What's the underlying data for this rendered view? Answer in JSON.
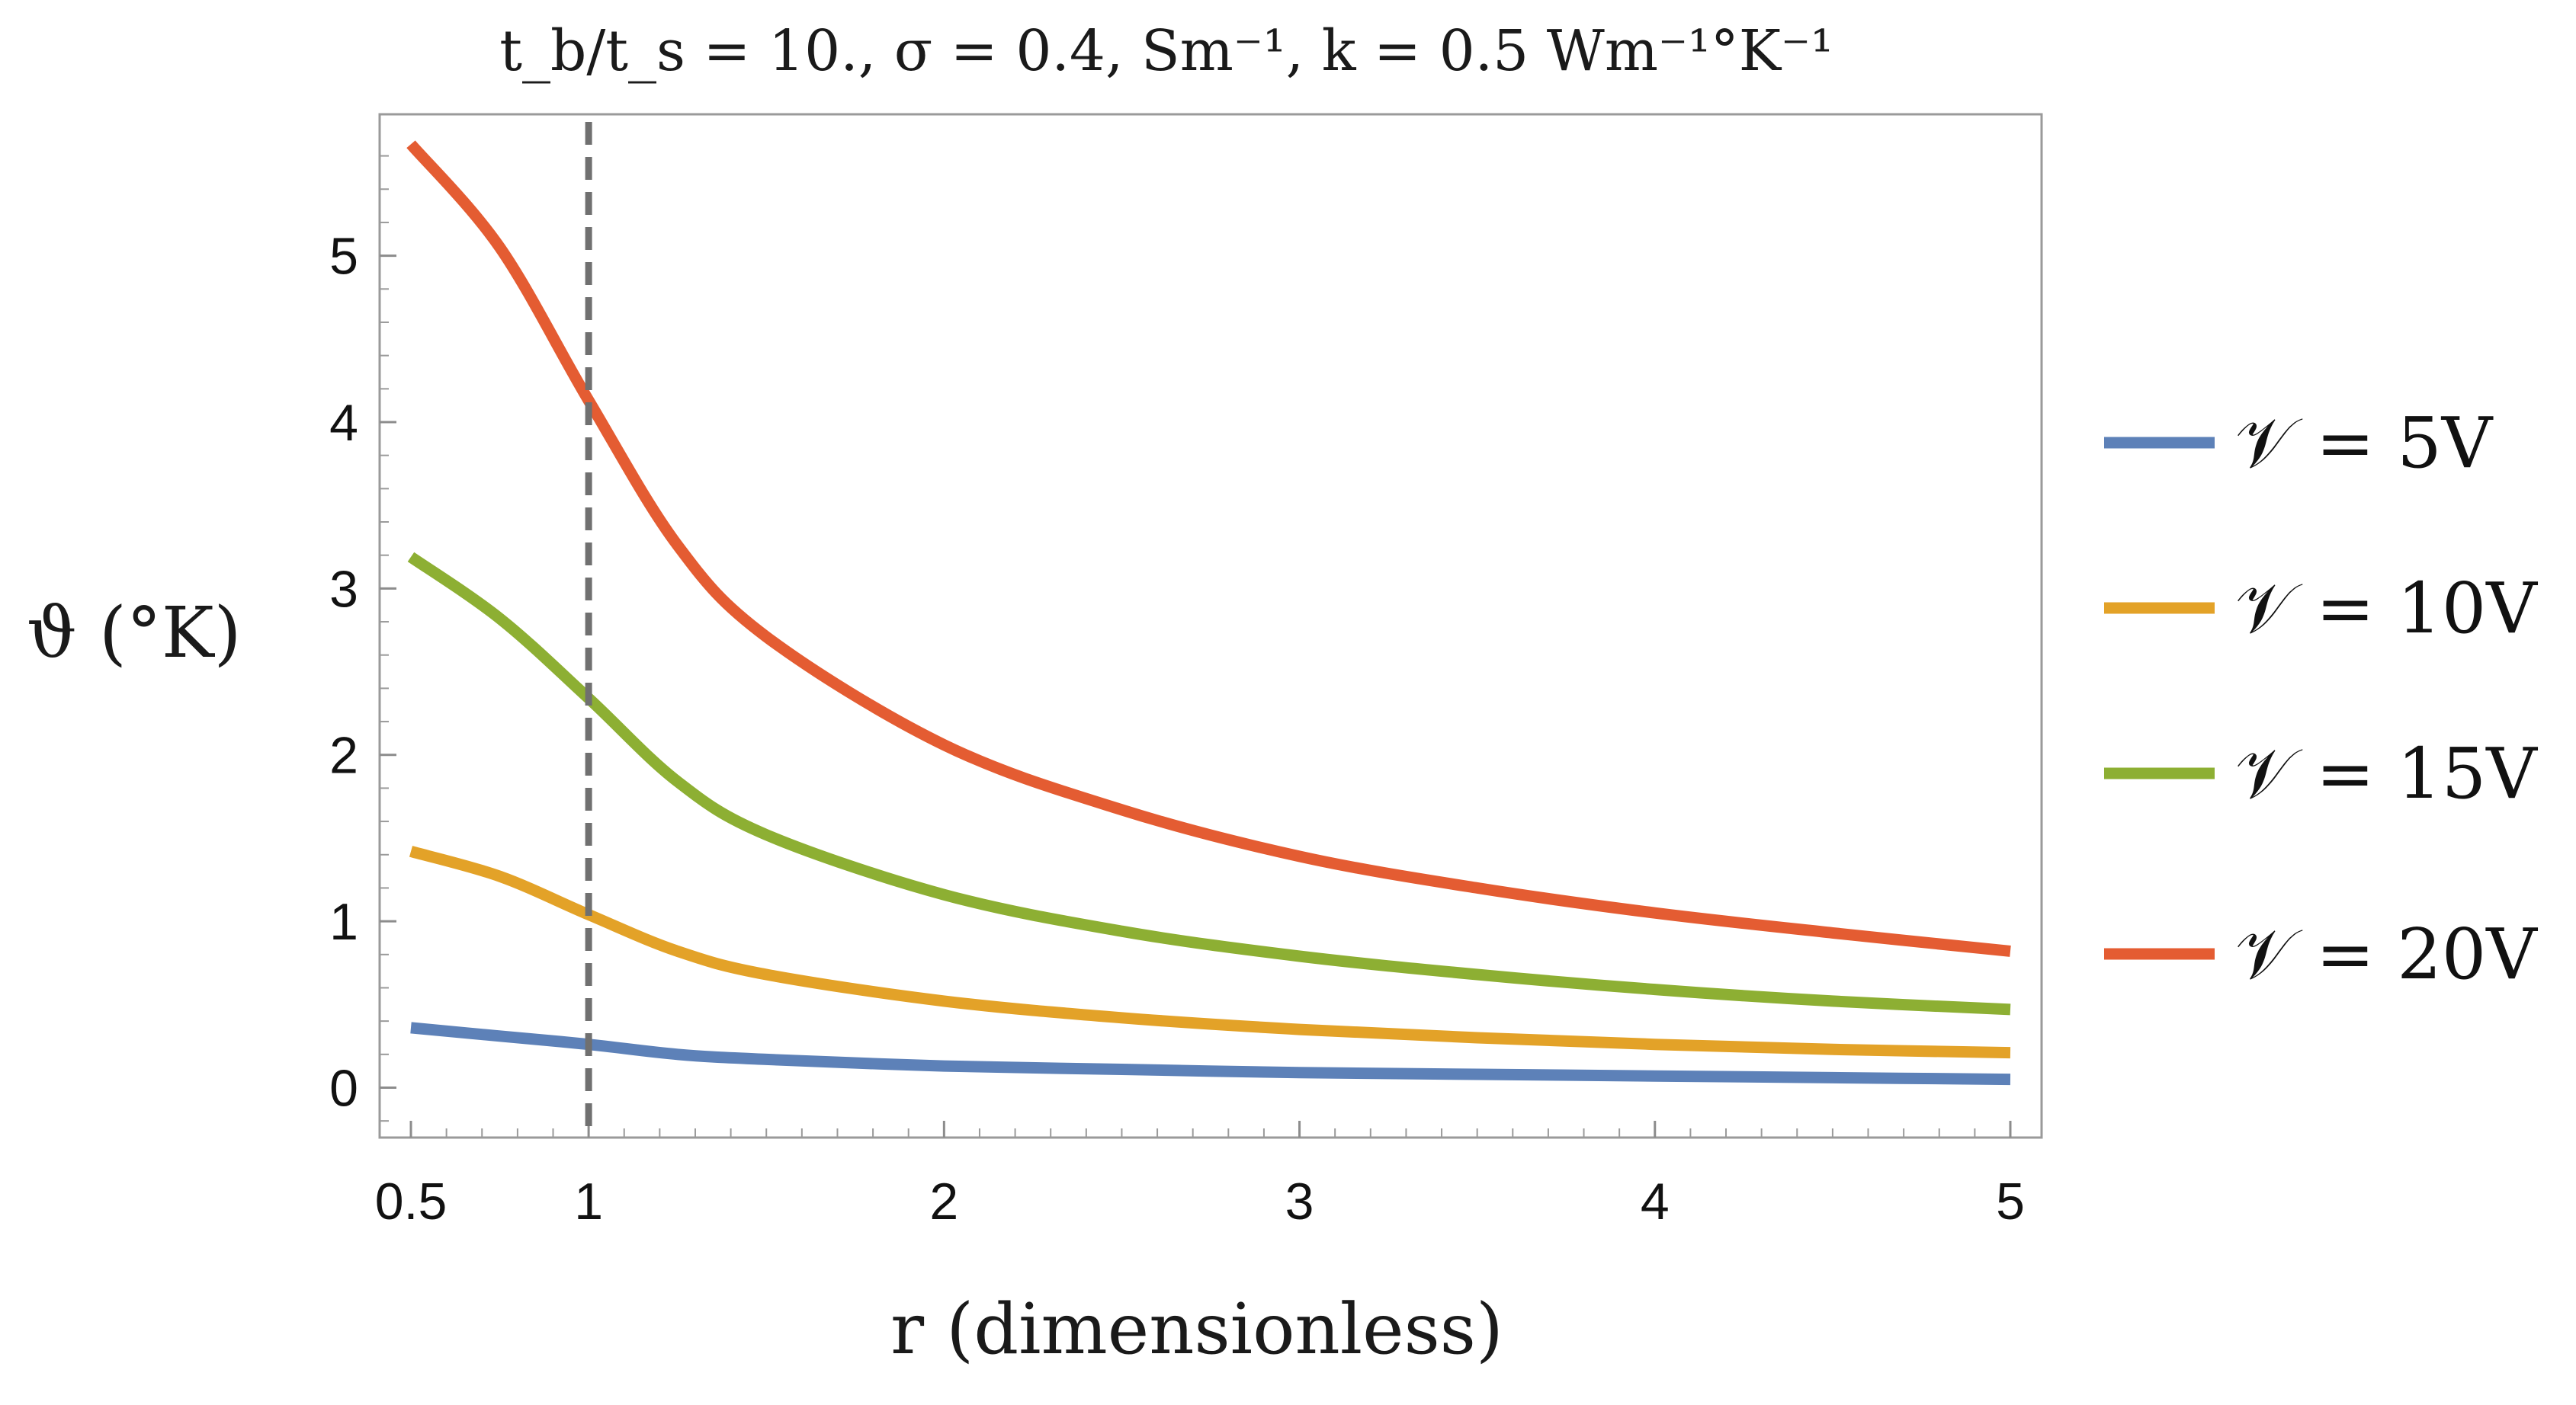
{
  "chart_data": {
    "type": "line",
    "title": "t_b/t_s = 10., σ = 0.4, Sm⁻¹, k = 0.5 Wm⁻¹°K⁻¹",
    "xlabel": "r (dimensionless)",
    "ylabel": "ϑ (°K)",
    "xlim": [
      0.5,
      5
    ],
    "ylim": [
      -0.3,
      5.85
    ],
    "x_ticks": [
      0.5,
      1,
      2,
      3,
      4,
      5
    ],
    "x_tick_labels": [
      "0.5",
      "1",
      "2",
      "3",
      "4",
      "5"
    ],
    "y_ticks": [
      0,
      1,
      2,
      3,
      4,
      5
    ],
    "y_tick_labels": [
      "0",
      "1",
      "2",
      "3",
      "4",
      "5"
    ],
    "grid": false,
    "legend_position": "right",
    "vertical_line": {
      "x": 1,
      "style": "dashed",
      "color": "#707070"
    },
    "series": [
      {
        "name": "𝒱 = 5V",
        "color": "#5d81b8",
        "x": [
          0.5,
          0.75,
          1,
          1.25,
          1.5,
          2,
          2.5,
          3,
          3.5,
          4,
          4.5,
          5
        ],
        "y": [
          0.36,
          0.31,
          0.26,
          0.2,
          0.17,
          0.13,
          0.11,
          0.09,
          0.08,
          0.07,
          0.06,
          0.05
        ]
      },
      {
        "name": "𝒱 = 10V",
        "color": "#e3a228",
        "x": [
          0.5,
          0.75,
          1,
          1.25,
          1.5,
          2,
          2.5,
          3,
          3.5,
          4,
          4.5,
          5
        ],
        "y": [
          1.42,
          1.27,
          1.04,
          0.82,
          0.68,
          0.52,
          0.42,
          0.35,
          0.3,
          0.26,
          0.23,
          0.21
        ]
      },
      {
        "name": "𝒱 = 15V",
        "color": "#8daf33",
        "x": [
          0.5,
          0.75,
          1,
          1.25,
          1.5,
          2,
          2.5,
          3,
          3.5,
          4,
          4.5,
          5
        ],
        "y": [
          3.19,
          2.82,
          2.34,
          1.84,
          1.52,
          1.16,
          0.94,
          0.79,
          0.68,
          0.59,
          0.52,
          0.47
        ]
      },
      {
        "name": "𝒱 = 20V",
        "color": "#e45c32",
        "x": [
          0.5,
          0.75,
          1,
          1.25,
          1.5,
          2,
          2.5,
          3,
          3.5,
          4,
          4.5,
          5
        ],
        "y": [
          5.67,
          5.05,
          4.13,
          3.26,
          2.71,
          2.06,
          1.67,
          1.39,
          1.2,
          1.05,
          0.93,
          0.82
        ]
      }
    ]
  }
}
